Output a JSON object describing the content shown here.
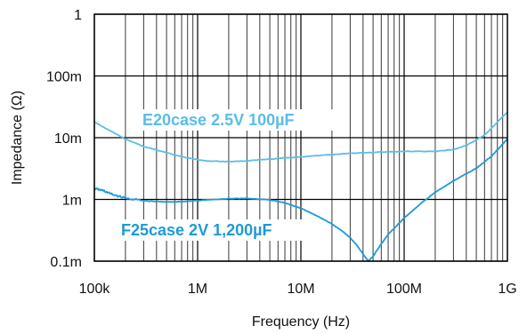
{
  "chart_data": {
    "type": "line",
    "title": "",
    "xlabel": "Frequency (Hz)",
    "ylabel": "Impedance (Ω)",
    "x_scale": "log",
    "y_scale": "log",
    "xlim": [
      100000,
      1000000000
    ],
    "ylim": [
      0.0001,
      1
    ],
    "grid": true,
    "x_tick_labels": [
      "100k",
      "1M",
      "10M",
      "100M",
      "1G"
    ],
    "y_tick_labels": [
      "0.1m",
      "1m",
      "10m",
      "100m",
      "1"
    ],
    "series": [
      {
        "name": "E20case 2.5V 100µF",
        "color": "#5bbde6",
        "x": [
          100000,
          130000,
          200000,
          300000,
          500000,
          800000,
          1200000,
          2000000,
          3000000,
          5000000,
          10000000,
          20000000,
          30000000,
          50000000,
          100000000,
          150000000,
          200000000,
          300000000,
          400000000,
          600000000,
          1000000000
        ],
        "y": [
          0.018,
          0.014,
          0.0095,
          0.0072,
          0.0057,
          0.0047,
          0.0042,
          0.0041,
          0.0042,
          0.0045,
          0.0049,
          0.0053,
          0.0056,
          0.0058,
          0.006,
          0.006,
          0.006,
          0.0064,
          0.0075,
          0.011,
          0.026
        ]
      },
      {
        "name": "F25case 2V 1,200µF",
        "color": "#1e9ad6",
        "x": [
          100000,
          120000,
          150000,
          200000,
          300000,
          500000,
          700000,
          1000000,
          2000000,
          3000000,
          5000000,
          7000000,
          10000000,
          15000000,
          20000000,
          25000000,
          30000000,
          35000000,
          40000000,
          45000000,
          50000000,
          60000000,
          70000000,
          100000000,
          150000000,
          200000000,
          300000000,
          500000000,
          700000000,
          1000000000
        ],
        "y": [
          0.0015,
          0.0014,
          0.0012,
          0.00105,
          0.00095,
          0.00091,
          0.00092,
          0.00096,
          0.00103,
          0.00104,
          0.00098,
          0.00088,
          0.00072,
          0.00052,
          0.0004,
          0.00031,
          0.00024,
          0.00018,
          0.00013,
          0.0001,
          0.00012,
          0.00019,
          0.00027,
          0.0005,
          0.0009,
          0.0013,
          0.002,
          0.0032,
          0.005,
          0.0095
        ]
      }
    ]
  }
}
